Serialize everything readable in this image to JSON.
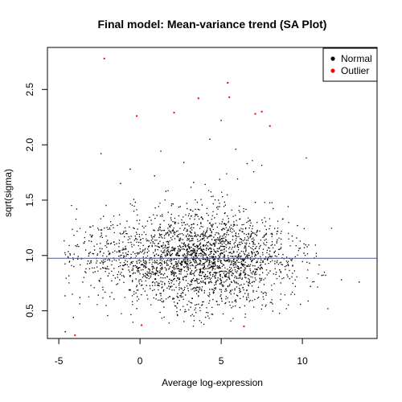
{
  "chart_data": {
    "type": "scatter",
    "title": "Final model: Mean-variance trend (SA Plot)",
    "xlabel": "Average log-expression",
    "ylabel": "sqrt(sigma)",
    "xlim": [
      -5.7,
      14.6
    ],
    "ylim": [
      0.25,
      2.88
    ],
    "xticks": [
      -5,
      0,
      5,
      10
    ],
    "yticks": [
      0.5,
      1.0,
      1.5,
      2.0,
      2.5
    ],
    "ytick_labels": [
      "0.5",
      "1.0",
      "1.5",
      "2.0",
      "2.5"
    ],
    "trend_line": {
      "y": 0.975,
      "color": "#3d52d5"
    },
    "legend": {
      "placement": "top-right",
      "entries": [
        {
          "label": "Normal",
          "color": "#000000"
        },
        {
          "label": "Outlier",
          "color": "#ff0000"
        }
      ]
    },
    "series": [
      {
        "name": "Normal",
        "color": "#000000",
        "x": [
          -3.2,
          -2.8,
          -2.1,
          -1.6,
          -0.9,
          -0.4,
          0.2,
          0.7,
          1.3,
          1.9,
          2.4,
          3.0,
          3.5,
          4.1,
          4.6,
          5.2,
          5.7,
          6.3,
          6.8,
          7.4,
          8.0,
          8.6,
          9.3,
          10.1,
          11.2,
          12.4,
          13.5,
          -4.1,
          -3.7,
          -1.2,
          0.9,
          2.7,
          4.3,
          5.9,
          7.1,
          8.8,
          -2.4,
          -0.6,
          1.6,
          3.3,
          5.0,
          6.6,
          9.7,
          -4.6,
          -3.9,
          -0.2,
          2.1,
          3.8,
          5.5,
          7.6,
          10.5
        ],
        "y": [
          0.95,
          1.05,
          0.88,
          1.12,
          0.92,
          1.25,
          0.83,
          1.18,
          0.97,
          1.34,
          0.86,
          1.08,
          0.79,
          1.21,
          0.93,
          1.29,
          0.84,
          1.11,
          0.98,
          0.91,
          1.04,
          0.87,
          0.96,
          1.02,
          0.82,
          0.78,
          0.76,
          0.44,
          0.62,
          1.65,
          1.72,
          1.84,
          2.05,
          1.96,
          1.48,
          1.33,
          1.92,
          1.78,
          1.58,
          1.66,
          2.22,
          1.83,
          1.27,
          0.31,
          1.42,
          0.52,
          0.61,
          0.55,
          0.58,
          0.66,
          0.72
        ]
      },
      {
        "name": "Outlier",
        "color": "#ff0000",
        "x": [
          -2.2,
          -0.2,
          -4.0,
          2.1,
          3.6,
          5.4,
          5.5,
          7.1,
          7.5,
          8.0,
          6.4,
          0.1
        ],
        "y": [
          2.78,
          2.26,
          0.28,
          2.29,
          2.42,
          2.56,
          2.43,
          2.28,
          2.3,
          2.17,
          0.36,
          0.37
        ]
      }
    ]
  }
}
